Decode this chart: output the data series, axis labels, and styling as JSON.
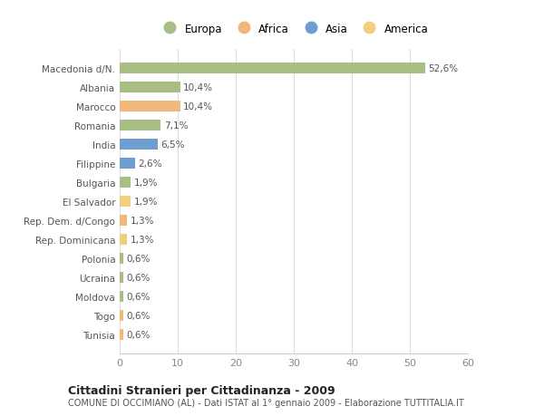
{
  "categories": [
    "Tunisia",
    "Togo",
    "Moldova",
    "Ucraina",
    "Polonia",
    "Rep. Dominicana",
    "Rep. Dem. d/Congo",
    "El Salvador",
    "Bulgaria",
    "Filippine",
    "India",
    "Romania",
    "Marocco",
    "Albania",
    "Macedonia d/N."
  ],
  "values": [
    0.6,
    0.6,
    0.6,
    0.6,
    0.6,
    1.3,
    1.3,
    1.9,
    1.9,
    2.6,
    6.5,
    7.1,
    10.4,
    10.4,
    52.6
  ],
  "labels": [
    "0,6%",
    "0,6%",
    "0,6%",
    "0,6%",
    "0,6%",
    "1,3%",
    "1,3%",
    "1,9%",
    "1,9%",
    "2,6%",
    "6,5%",
    "7,1%",
    "10,4%",
    "10,4%",
    "52,6%"
  ],
  "colors": [
    "#f0b87a",
    "#f0b87a",
    "#a8be84",
    "#a8be84",
    "#a8be84",
    "#f0d080",
    "#f0b87a",
    "#f0d080",
    "#a8be84",
    "#6e9ecf",
    "#6e9ecf",
    "#a8be84",
    "#f0b87a",
    "#a8be84",
    "#a8be84"
  ],
  "legend_colors": {
    "Europa": "#a8be84",
    "Africa": "#f0b87a",
    "Asia": "#6e9ecf",
    "America": "#f0d080"
  },
  "xlim": [
    0,
    60
  ],
  "xticks": [
    0,
    10,
    20,
    30,
    40,
    50,
    60
  ],
  "title": "Cittadini Stranieri per Cittadinanza - 2009",
  "subtitle": "COMUNE DI OCCIMIANO (AL) - Dati ISTAT al 1° gennaio 2009 - Elaborazione TUTTITALIA.IT",
  "bg_color": "#ffffff",
  "bar_height": 0.55,
  "label_fontsize": 7.5,
  "ytick_fontsize": 7.5,
  "xtick_fontsize": 8
}
